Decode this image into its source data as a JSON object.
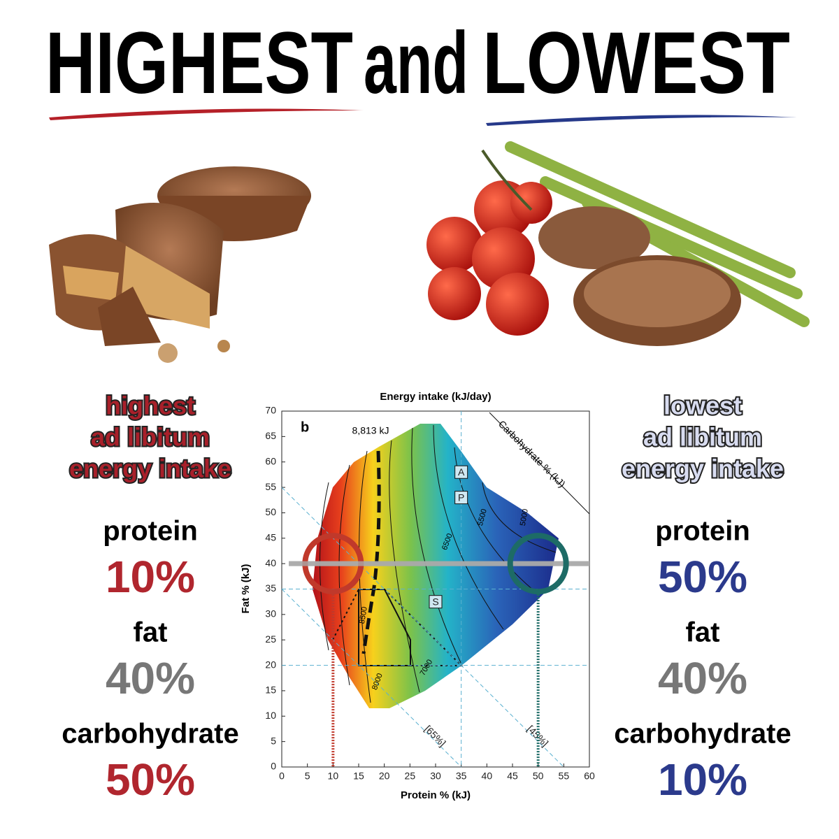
{
  "header": {
    "title_left": "HIGHEST",
    "title_mid": "and",
    "title_right": "LOWEST"
  },
  "left": {
    "heading": [
      "highest",
      "ad libitum",
      "energy intake"
    ],
    "items": [
      {
        "label": "protein",
        "value": "10%"
      },
      {
        "label": "fat",
        "value": "40%"
      },
      {
        "label": "carbohydrate",
        "value": "50%"
      }
    ]
  },
  "right": {
    "heading": [
      "lowest",
      "ad libitum",
      "energy intake"
    ],
    "items": [
      {
        "label": "protein",
        "value": "50%"
      },
      {
        "label": "fat",
        "value": "40%"
      },
      {
        "label": "carbohydrate",
        "value": "10%"
      }
    ]
  },
  "chart_data": {
    "type": "contour",
    "title": "Energy intake (kJ/day)",
    "panel_label": "b",
    "x_label": "Protein %  (kJ)",
    "y_label": "Fat % (kJ)",
    "xlim": [
      0,
      60
    ],
    "ylim": [
      0,
      70
    ],
    "xticks": [
      0,
      5,
      10,
      15,
      20,
      25,
      30,
      35,
      40,
      45,
      50,
      55,
      60
    ],
    "yticks": [
      0,
      5,
      10,
      15,
      20,
      25,
      30,
      35,
      40,
      45,
      50,
      55,
      60,
      65,
      70
    ],
    "peak_label": "8,813 kJ",
    "carb_axis_label": "Carbohydrate % (kJ)",
    "contour_labels": [
      "8500",
      "8000",
      "7000",
      "6500",
      "5500",
      "5000"
    ],
    "points": [
      {
        "label": "A",
        "x": 35,
        "y": 58
      },
      {
        "label": "P",
        "x": 35,
        "y": 53
      },
      {
        "label": "S",
        "x": 30,
        "y": 32.5
      }
    ],
    "guides": {
      "x": [
        35
      ],
      "y": [
        20,
        35
      ]
    },
    "carb_lines": [
      {
        "value": 65,
        "label": "[65%]"
      },
      {
        "value": 45,
        "label": "[45%]"
      }
    ],
    "highlights": [
      {
        "x": 10,
        "y": 40,
        "color": "#c0392b"
      },
      {
        "x": 50,
        "y": 40,
        "color": "#1d6b66"
      }
    ]
  }
}
